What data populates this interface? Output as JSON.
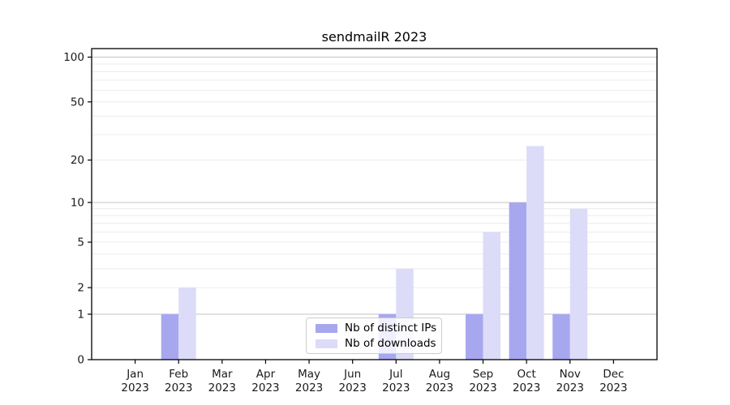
{
  "title": "sendmailR 2023",
  "legend": {
    "items": [
      {
        "label": "Nb of distinct IPs",
        "color": "#a7a7f0"
      },
      {
        "label": "Nb of downloads",
        "color": "#dcdcf8"
      }
    ]
  },
  "axes": {
    "y_ticks": [
      {
        "value": 100,
        "label": "100"
      },
      {
        "value": 50,
        "label": "50"
      },
      {
        "value": 20,
        "label": "20"
      },
      {
        "value": 10,
        "label": "10"
      },
      {
        "value": 5,
        "label": "5"
      },
      {
        "value": 2,
        "label": "2"
      },
      {
        "value": 1,
        "label": "1"
      },
      {
        "value": 0,
        "label": "0"
      }
    ],
    "x_ticks": [
      {
        "month": "Jan",
        "year": "2023"
      },
      {
        "month": "Feb",
        "year": "2023"
      },
      {
        "month": "Mar",
        "year": "2023"
      },
      {
        "month": "Apr",
        "year": "2023"
      },
      {
        "month": "May",
        "year": "2023"
      },
      {
        "month": "Jun",
        "year": "2023"
      },
      {
        "month": "Jul",
        "year": "2023"
      },
      {
        "month": "Aug",
        "year": "2023"
      },
      {
        "month": "Sep",
        "year": "2023"
      },
      {
        "month": "Oct",
        "year": "2023"
      },
      {
        "month": "Nov",
        "year": "2023"
      },
      {
        "month": "Dec",
        "year": "2023"
      }
    ]
  },
  "chart_data": {
    "type": "bar",
    "title": "sendmailR 2023",
    "categories": [
      "Jan 2023",
      "Feb 2023",
      "Mar 2023",
      "Apr 2023",
      "May 2023",
      "Jun 2023",
      "Jul 2023",
      "Aug 2023",
      "Sep 2023",
      "Oct 2023",
      "Nov 2023",
      "Dec 2023"
    ],
    "series": [
      {
        "name": "Nb of distinct IPs",
        "color": "#a7a7f0",
        "values": [
          0,
          1,
          0,
          0,
          0,
          0,
          1,
          0,
          1,
          10,
          1,
          0
        ]
      },
      {
        "name": "Nb of downloads",
        "color": "#dcdcf8",
        "values": [
          0,
          2,
          0,
          0,
          0,
          0,
          3,
          0,
          6,
          25,
          9,
          0
        ]
      }
    ],
    "xlabel": "",
    "ylabel": "",
    "yscale": "log1p",
    "ylim": [
      0,
      114
    ],
    "y_major_ticks": [
      0,
      1,
      2,
      5,
      10,
      20,
      50,
      100
    ],
    "gridlines": {
      "decade": [
        1,
        10,
        100
      ],
      "minor": [
        2,
        3,
        4,
        5,
        6,
        7,
        8,
        9,
        20,
        30,
        40,
        50,
        60,
        70,
        80,
        90
      ]
    },
    "grid": true,
    "legend_position": "lower center"
  },
  "colors": {
    "bar_distinct_ips": "#a7a7f0",
    "bar_downloads": "#dcdcf8",
    "grid_decade": "#c3c3c3",
    "grid_minor": "#ececec",
    "axis": "#000000",
    "tick_text": "#1a1a1a",
    "legend_border": "#cccccc",
    "background": "#ffffff"
  }
}
